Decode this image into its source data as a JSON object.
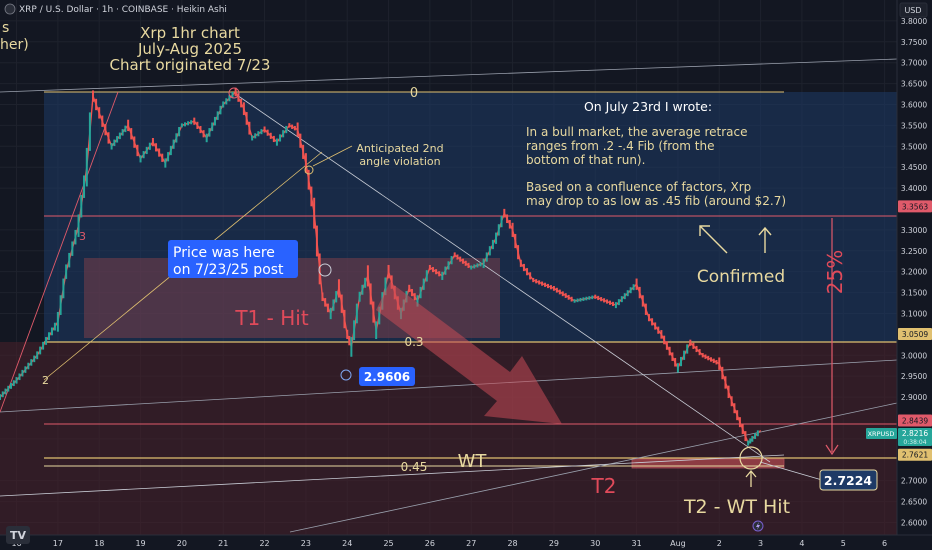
{
  "header": {
    "symbol_line": "XRP / U.S. Dollar · 1h · COINBASE · Heikin Ashi",
    "left_fragment_1": "s",
    "left_fragment_2": "her)"
  },
  "annotations": {
    "title_1": "Xrp 1hr chart",
    "title_2": "July-Aug 2025",
    "title_3": "Chart originated 7/23",
    "fib_0": "0",
    "fib_03": "0.3",
    "fib_045": "0.45",
    "anticipated_1": "Anticipated 2nd",
    "anticipated_2": "angle violation",
    "note_heading": "On July 23rd I wrote:",
    "note_1": "In a bull market, the average retrace",
    "note_2": "ranges from .2 -.4 Fib (from the",
    "note_3": "bottom of that run).",
    "note_4": "Based on a confluence of factors, Xrp",
    "note_5": "may drop to as low as .45 fib (around $2.7)",
    "confirmed": "Confirmed",
    "pct": "25%",
    "price_here_1": "Price was here",
    "price_here_2": "on 7/23/25 post",
    "t1": "T1 - Hit",
    "wt": "WT",
    "t2": "T2",
    "t2_hit": "T2 - WT Hit",
    "low_label": "2.9606",
    "target_label": "2.7224",
    "angle_marks": [
      "3",
      "2"
    ]
  },
  "axis": {
    "currency": "USD",
    "price_marks": [
      {
        "label": "3.8000",
        "value": 3.8
      },
      {
        "label": "3.7500",
        "value": 3.75
      },
      {
        "label": "3.7000",
        "value": 3.7
      },
      {
        "label": "3.6500",
        "value": 3.65
      },
      {
        "label": "3.6000",
        "value": 3.6
      },
      {
        "label": "3.5500",
        "value": 3.55
      },
      {
        "label": "3.5000",
        "value": 3.5
      },
      {
        "label": "3.4500",
        "value": 3.45
      },
      {
        "label": "3.4000",
        "value": 3.4
      },
      {
        "label": "3.3000",
        "value": 3.3
      },
      {
        "label": "3.2500",
        "value": 3.25
      },
      {
        "label": "3.2000",
        "value": 3.2
      },
      {
        "label": "3.1500",
        "value": 3.15
      },
      {
        "label": "3.1000",
        "value": 3.1
      },
      {
        "label": "3.0000",
        "value": 3.0
      },
      {
        "label": "2.9500",
        "value": 2.95
      },
      {
        "label": "2.9000",
        "value": 2.9
      },
      {
        "label": "2.8000",
        "value": 2.8
      },
      {
        "label": "2.7000",
        "value": 2.7
      },
      {
        "label": "2.6500",
        "value": 2.65
      },
      {
        "label": "2.6000",
        "value": 2.6
      }
    ],
    "price_tags": [
      {
        "label": "3.3563",
        "value": 3.3563,
        "color": "#e05a6a"
      },
      {
        "label": "3.0509",
        "value": 3.0509,
        "color": "#e0c070"
      },
      {
        "label": "2.8439",
        "value": 2.8439,
        "color": "#e05a6a"
      },
      {
        "label": "2.7621",
        "value": 2.7621,
        "color": "#e0c070"
      }
    ],
    "current": {
      "label": "2.8216",
      "sub": "0:38:04",
      "symbol": "XRPUSD",
      "value": 2.8216
    },
    "x_labels": [
      {
        "label": "16",
        "day": 16
      },
      {
        "label": "17",
        "day": 17
      },
      {
        "label": "18",
        "day": 18
      },
      {
        "label": "19",
        "day": 19
      },
      {
        "label": "20",
        "day": 20
      },
      {
        "label": "21",
        "day": 21
      },
      {
        "label": "22",
        "day": 22
      },
      {
        "label": "23",
        "day": 23
      },
      {
        "label": "24",
        "day": 24
      },
      {
        "label": "25",
        "day": 25
      },
      {
        "label": "26",
        "day": 26
      },
      {
        "label": "27",
        "day": 27
      },
      {
        "label": "28",
        "day": 28
      },
      {
        "label": "29",
        "day": 29
      },
      {
        "label": "30",
        "day": 30
      },
      {
        "label": "31",
        "day": 31
      },
      {
        "label": "Aug",
        "day": 32
      },
      {
        "label": "2",
        "day": 33
      },
      {
        "label": "3",
        "day": 34
      },
      {
        "label": "4",
        "day": 35
      },
      {
        "label": "5",
        "day": 36
      },
      {
        "label": "6",
        "day": 37
      }
    ]
  },
  "chart_data": {
    "type": "line",
    "title": "Xrp 1hr chart",
    "subtitle": "July-Aug 2025",
    "x_unit": "day (July; Aug 1 = 32)",
    "ylim": [
      2.57,
      3.85
    ],
    "xlim": [
      15.6,
      37.3
    ],
    "series": [
      {
        "x": [
          15.6,
          16,
          16.5,
          17,
          17.2,
          17.5,
          17.7,
          17.85,
          18,
          18.3,
          18.7,
          19,
          19.3,
          19.6,
          20,
          20.3,
          20.6,
          21,
          21.3,
          21.5,
          21.7,
          22,
          22.3,
          22.6,
          22.8,
          23,
          23.2,
          23.4,
          23.6,
          23.8,
          24,
          24.1,
          24.3,
          24.5,
          24.7,
          25,
          25.3,
          25.5,
          25.7,
          26,
          26.3,
          26.6,
          27,
          27.3,
          27.6,
          27.8,
          28,
          28.2,
          28.5,
          29,
          29.5,
          30,
          30.5,
          31,
          31.3,
          31.6,
          32,
          32.3,
          32.6,
          33,
          33.3,
          33.5,
          33.7,
          33.8,
          34
        ],
        "y": [
          2.9,
          2.94,
          3.0,
          3.08,
          3.2,
          3.31,
          3.45,
          3.62,
          3.58,
          3.5,
          3.55,
          3.47,
          3.51,
          3.46,
          3.55,
          3.56,
          3.52,
          3.6,
          3.63,
          3.59,
          3.52,
          3.54,
          3.51,
          3.55,
          3.54,
          3.46,
          3.34,
          3.14,
          3.1,
          3.16,
          3.05,
          3.02,
          3.14,
          3.19,
          3.06,
          3.2,
          3.1,
          3.16,
          3.13,
          3.21,
          3.19,
          3.24,
          3.21,
          3.22,
          3.28,
          3.34,
          3.3,
          3.22,
          3.18,
          3.16,
          3.13,
          3.14,
          3.12,
          3.17,
          3.09,
          3.05,
          2.97,
          3.03,
          3.0,
          2.98,
          2.89,
          2.84,
          2.79,
          2.8,
          2.82
        ]
      }
    ],
    "fib_levels": [
      {
        "name": "0",
        "value": 3.6565
      },
      {
        "name": "0.3",
        "value": 3.0509
      },
      {
        "name": "0.45",
        "value": 2.7621
      }
    ],
    "horizontal_levels": [
      3.3563,
      3.0509,
      2.8439,
      2.7621
    ],
    "grid": true,
    "legend": "none"
  },
  "colors": {
    "bg": "#131722",
    "grid": "#1e222d",
    "up": "#26a69a",
    "down": "#ef5350",
    "gold": "#e8d9a0",
    "fib_line": "#e0c070",
    "blue_zone": "#1e3a66",
    "red_zone": "#5a2832",
    "t1_zone": "#6b3a44",
    "label_blue": "#2962ff",
    "axis_text": "#d1d4dc",
    "red_text": "#e04a5a"
  }
}
